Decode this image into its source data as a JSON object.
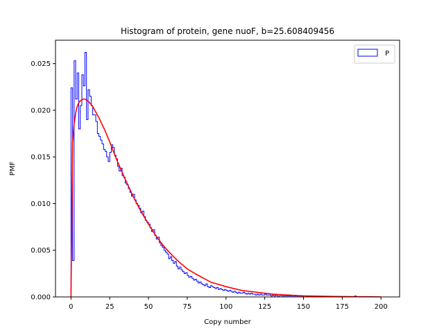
{
  "chart_data": {
    "type": "histogram",
    "title": "Histogram of protein, gene nuoF, b=25.608409456",
    "xlabel": "Copy number",
    "ylabel": "PMF",
    "xlim": [
      -10,
      212
    ],
    "ylim": [
      0,
      0.0275
    ],
    "xticks": [
      0,
      25,
      50,
      75,
      100,
      125,
      150,
      175,
      200
    ],
    "yticks": [
      0.0,
      0.005,
      0.01,
      0.015,
      0.02,
      0.025
    ],
    "ytick_labels": [
      "0.000",
      "0.005",
      "0.010",
      "0.015",
      "0.020",
      "0.025"
    ],
    "grid": false,
    "legend": {
      "position": "top-right",
      "entries": [
        "P"
      ]
    },
    "histogram": {
      "name": "P",
      "color": "#0000ff",
      "bin_width": 1,
      "bin_start": 0,
      "values": [
        0.0224,
        0.0039,
        0.0253,
        0.0212,
        0.024,
        0.018,
        0.0205,
        0.0238,
        0.0226,
        0.0262,
        0.019,
        0.0222,
        0.0215,
        0.0205,
        0.0195,
        0.0195,
        0.0188,
        0.0175,
        0.0172,
        0.0168,
        0.0164,
        0.0158,
        0.0156,
        0.015,
        0.0145,
        0.0155,
        0.0163,
        0.016,
        0.0152,
        0.0148,
        0.014,
        0.0135,
        0.0138,
        0.013,
        0.0128,
        0.0122,
        0.012,
        0.0116,
        0.0112,
        0.0108,
        0.011,
        0.0104,
        0.01,
        0.0098,
        0.0095,
        0.009,
        0.0092,
        0.0086,
        0.0082,
        0.008,
        0.0078,
        0.0074,
        0.007,
        0.0072,
        0.0066,
        0.0062,
        0.0064,
        0.0058,
        0.0055,
        0.0053,
        0.005,
        0.0048,
        0.0046,
        0.0041,
        0.0043,
        0.0039,
        0.0036,
        0.0038,
        0.0033,
        0.003,
        0.0032,
        0.0029,
        0.0027,
        0.0025,
        0.0026,
        0.0023,
        0.0021,
        0.0022,
        0.002,
        0.0018,
        0.0019,
        0.0017,
        0.0015,
        0.0016,
        0.0014,
        0.0013,
        0.0012,
        0.0014,
        0.0011,
        0.001,
        0.0012,
        0.0011,
        0.001,
        0.0009,
        0.001,
        0.0008,
        0.0009,
        0.0008,
        0.0007,
        0.0008,
        0.0007,
        0.0006,
        0.0007,
        0.0006,
        0.0005,
        0.0006,
        0.0005,
        0.0004,
        0.0005,
        0.0004,
        0.0004,
        0.0005,
        0.0004,
        0.0003,
        0.0004,
        0.0003,
        0.0004,
        0.0003,
        0.0003,
        0.0002,
        0.0003,
        0.0002,
        0.0003,
        0.0002,
        0.0002,
        0.0003,
        0.0002,
        0.0002,
        0.0002,
        0.0001,
        0.0002,
        0.0001,
        0.0002,
        0.0001,
        0.0001,
        0.0002,
        0.0001,
        0.0001,
        0.0001,
        0.0001,
        0.0001,
        0.0001,
        0.0001,
        0.0,
        0.0001,
        0.0001,
        0.0,
        0.0001,
        0.0,
        0.0001,
        0.0,
        0.0,
        0.0001,
        0.0,
        0.0,
        0.0,
        0.0,
        0.0001,
        0.0,
        0.0,
        0.0,
        0.0,
        0.0,
        0.0,
        0.0,
        0.0,
        0.0,
        0.0,
        0.0,
        0.0,
        0.0,
        0.0,
        0.0,
        0.0,
        0.0,
        0.0,
        0.0,
        0.0,
        0.0,
        0.0,
        0.0,
        0.0,
        0.0,
        0.0001,
        0.0,
        0.0,
        0.0,
        0.0,
        0.0,
        0.0,
        0.0,
        0.0,
        0.0,
        0.0,
        0.0,
        0.0,
        0.0,
        0.0,
        0.0,
        0.0
      ]
    },
    "fit_curve": {
      "type": "line",
      "color": "#ff0000",
      "x": [
        0,
        1,
        2,
        3,
        4,
        5,
        6,
        7,
        8,
        9,
        10,
        12,
        14,
        16,
        18,
        20,
        22,
        25,
        28,
        30,
        35,
        40,
        45,
        50,
        55,
        60,
        65,
        70,
        75,
        80,
        90,
        100,
        110,
        120,
        130,
        140,
        150,
        160,
        170,
        180,
        190,
        200
      ],
      "y": [
        0.0,
        0.0165,
        0.0185,
        0.0197,
        0.0204,
        0.0208,
        0.021,
        0.0211,
        0.0212,
        0.0212,
        0.0211,
        0.0208,
        0.0204,
        0.0198,
        0.0192,
        0.0185,
        0.0178,
        0.0166,
        0.0153,
        0.0145,
        0.0126,
        0.0108,
        0.0092,
        0.0078,
        0.0065,
        0.0054,
        0.0045,
        0.0037,
        0.003,
        0.0025,
        0.0016,
        0.0011,
        0.0007,
        0.0005,
        0.0003,
        0.0002,
        0.00012,
        8e-05,
        5e-05,
        3e-05,
        2e-05,
        1e-05
      ]
    }
  }
}
